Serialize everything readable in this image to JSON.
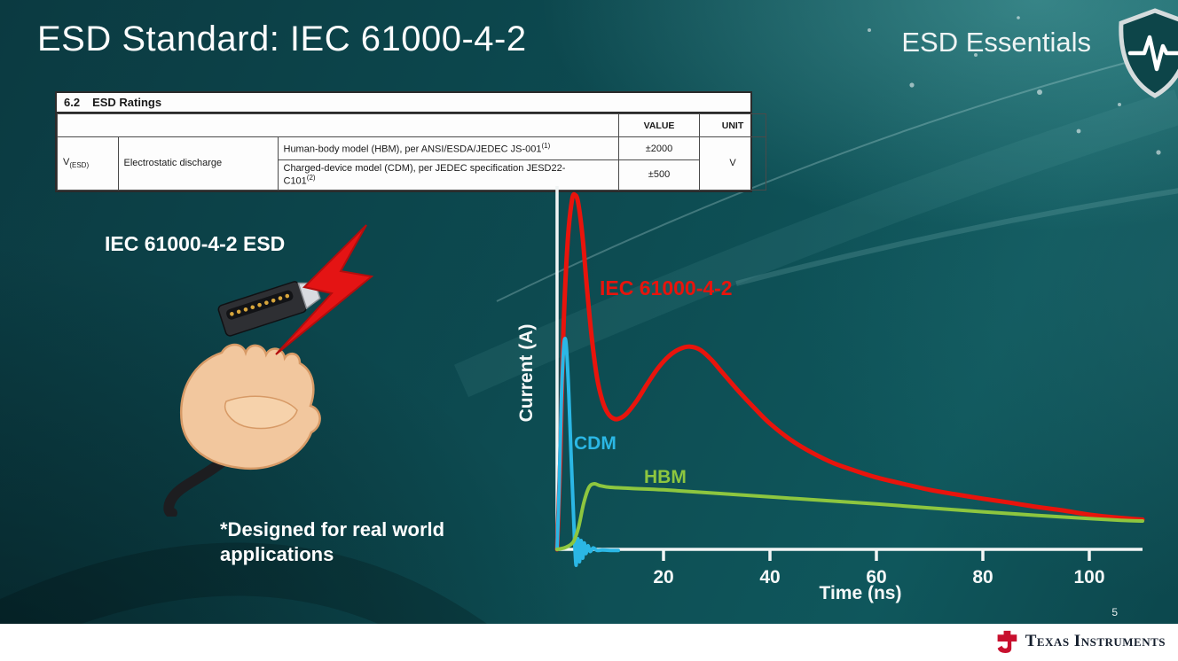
{
  "slide": {
    "title": "ESD Standard: IEC 61000-4-2",
    "brand": "ESD Essentials",
    "caption_left": "IEC 61000-4-2 ESD",
    "note": "*Designed for real world applications",
    "page_number": "5",
    "footer_logo": "Texas Instruments"
  },
  "ratings_table": {
    "section_number": "6.2",
    "section_title": "ESD Ratings",
    "col_value": "VALUE",
    "col_unit": "UNIT",
    "symbol_main": "V",
    "symbol_sub": "(ESD)",
    "parameter": "Electrostatic discharge",
    "rows": [
      {
        "cond": "Human-body model (HBM), per ANSI/ESDA/JEDEC JS-001",
        "sup": "(1)",
        "value": "±2000"
      },
      {
        "cond": "Charged-device model (CDM), per JEDEC specification JESD22-",
        "cond2": "C101",
        "sup": "(2)",
        "value": "±500"
      }
    ],
    "unit": "V"
  },
  "chart_data": {
    "type": "line",
    "title": "",
    "xlabel": "Time (ns)",
    "ylabel": "Current (A)",
    "xlim": [
      0,
      110
    ],
    "ylim": [
      -0.06,
      1.05
    ],
    "xticks": [
      20,
      40,
      60,
      80,
      100
    ],
    "yticks": [],
    "grid": false,
    "legend_position": "inline-labels",
    "axis_color": "#f2f5f5",
    "series": [
      {
        "name": "IEC 61000-4-2",
        "color": "#e8140c",
        "stroke_width": 5,
        "points": [
          [
            0,
            0.0
          ],
          [
            0.6,
            0.25
          ],
          [
            1.2,
            0.62
          ],
          [
            2,
            0.87
          ],
          [
            2.8,
            0.985
          ],
          [
            3.4,
            1.0
          ],
          [
            4,
            0.975
          ],
          [
            4.8,
            0.88
          ],
          [
            5.6,
            0.74
          ],
          [
            6.5,
            0.6
          ],
          [
            7.5,
            0.485
          ],
          [
            8.5,
            0.42
          ],
          [
            9.5,
            0.385
          ],
          [
            10.5,
            0.37
          ],
          [
            11.5,
            0.368
          ],
          [
            13,
            0.382
          ],
          [
            15,
            0.42
          ],
          [
            17,
            0.468
          ],
          [
            19,
            0.512
          ],
          [
            21,
            0.545
          ],
          [
            23,
            0.565
          ],
          [
            25,
            0.572
          ],
          [
            27,
            0.562
          ],
          [
            29,
            0.535
          ],
          [
            31,
            0.5
          ],
          [
            34,
            0.448
          ],
          [
            37,
            0.4
          ],
          [
            40,
            0.355
          ],
          [
            44,
            0.308
          ],
          [
            48,
            0.272
          ],
          [
            52,
            0.243
          ],
          [
            56,
            0.222
          ],
          [
            60,
            0.203
          ],
          [
            65,
            0.185
          ],
          [
            70,
            0.168
          ],
          [
            75,
            0.155
          ],
          [
            80,
            0.143
          ],
          [
            85,
            0.132
          ],
          [
            90,
            0.12
          ],
          [
            95,
            0.11
          ],
          [
            100,
            0.098
          ],
          [
            105,
            0.09
          ],
          [
            110,
            0.084
          ]
        ]
      },
      {
        "name": "CDM",
        "color": "#2bb7e5",
        "stroke_width": 4,
        "points": [
          [
            0,
            0.0
          ],
          [
            0.4,
            0.18
          ],
          [
            0.8,
            0.42
          ],
          [
            1.2,
            0.56
          ],
          [
            1.5,
            0.595
          ],
          [
            1.8,
            0.56
          ],
          [
            2.2,
            0.44
          ],
          [
            2.6,
            0.28
          ],
          [
            3.0,
            0.13
          ],
          [
            3.3,
            0.02
          ],
          [
            3.6,
            -0.045
          ],
          [
            3.9,
            0.03
          ],
          [
            4.2,
            -0.035
          ],
          [
            4.5,
            0.025
          ],
          [
            4.8,
            -0.025
          ],
          [
            5.1,
            0.018
          ],
          [
            5.4,
            -0.012
          ],
          [
            5.8,
            0.01
          ],
          [
            6.2,
            -0.006
          ],
          [
            6.8,
            0.004
          ],
          [
            7.5,
            -0.003
          ],
          [
            8.5,
            -0.002
          ],
          [
            10,
            -0.003
          ],
          [
            11.5,
            -0.003
          ]
        ]
      },
      {
        "name": "HBM",
        "color": "#8dc63f",
        "stroke_width": 4,
        "points": [
          [
            0,
            0.0
          ],
          [
            1.5,
            0.005
          ],
          [
            3,
            0.02
          ],
          [
            4,
            0.06
          ],
          [
            5,
            0.13
          ],
          [
            6,
            0.175
          ],
          [
            7,
            0.185
          ],
          [
            8,
            0.18
          ],
          [
            10,
            0.175
          ],
          [
            14,
            0.172
          ],
          [
            20,
            0.168
          ],
          [
            30,
            0.158
          ],
          [
            40,
            0.148
          ],
          [
            50,
            0.138
          ],
          [
            60,
            0.128
          ],
          [
            70,
            0.117
          ],
          [
            80,
            0.106
          ],
          [
            90,
            0.096
          ],
          [
            100,
            0.087
          ],
          [
            106,
            0.082
          ],
          [
            110,
            0.08
          ]
        ]
      }
    ]
  },
  "colors": {
    "background_teal": "#0e4d53",
    "iec_red": "#e8140c",
    "cdm_cyan": "#2bb7e5",
    "hbm_green": "#8dc63f",
    "footer_white": "#ffffff",
    "ti_red": "#c8102e"
  }
}
